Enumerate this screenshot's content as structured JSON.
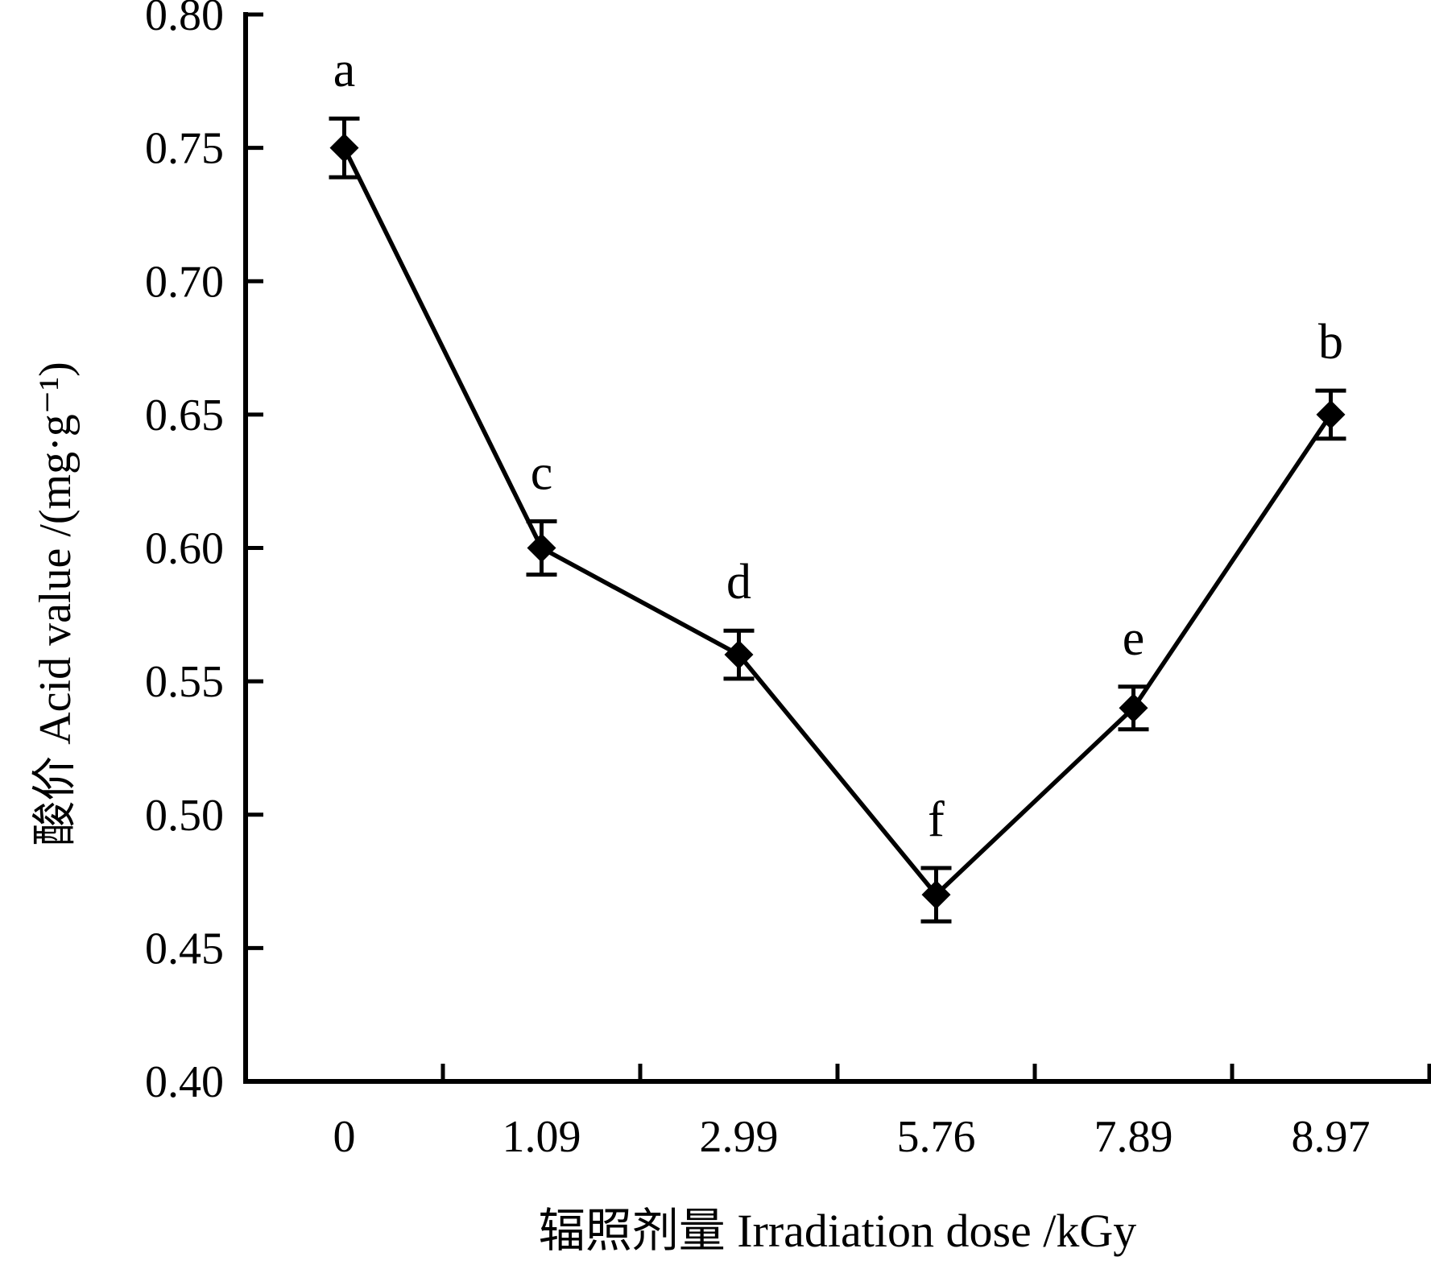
{
  "figure": {
    "background": "#ffffff",
    "ink_color": "#000000"
  },
  "chart_data": {
    "type": "line",
    "title": "",
    "xlabel": "辐照剂量 Irradiation dose /kGy",
    "ylabel": "酸价 Acid value /(mg·g⁻¹)",
    "categories": [
      "0",
      "1.09",
      "2.99",
      "5.76",
      "7.89",
      "8.97"
    ],
    "series": [
      {
        "name": "Acid value",
        "values": [
          0.75,
          0.6,
          0.56,
          0.47,
          0.54,
          0.65
        ],
        "errors": [
          0.011,
          0.01,
          0.009,
          0.01,
          0.008,
          0.009
        ],
        "point_labels": [
          "a",
          "c",
          "d",
          "f",
          "e",
          "b"
        ],
        "marker": "diamond",
        "color": "#000000"
      }
    ],
    "ylim": [
      0.4,
      0.8
    ],
    "y_tick_step": 0.05,
    "y_ticks": [
      "0.40",
      "0.45",
      "0.50",
      "0.55",
      "0.60",
      "0.65",
      "0.70",
      "0.75",
      "0.80"
    ],
    "grid": false,
    "legend": "none",
    "error_bars": true,
    "tick_direction": "in"
  }
}
